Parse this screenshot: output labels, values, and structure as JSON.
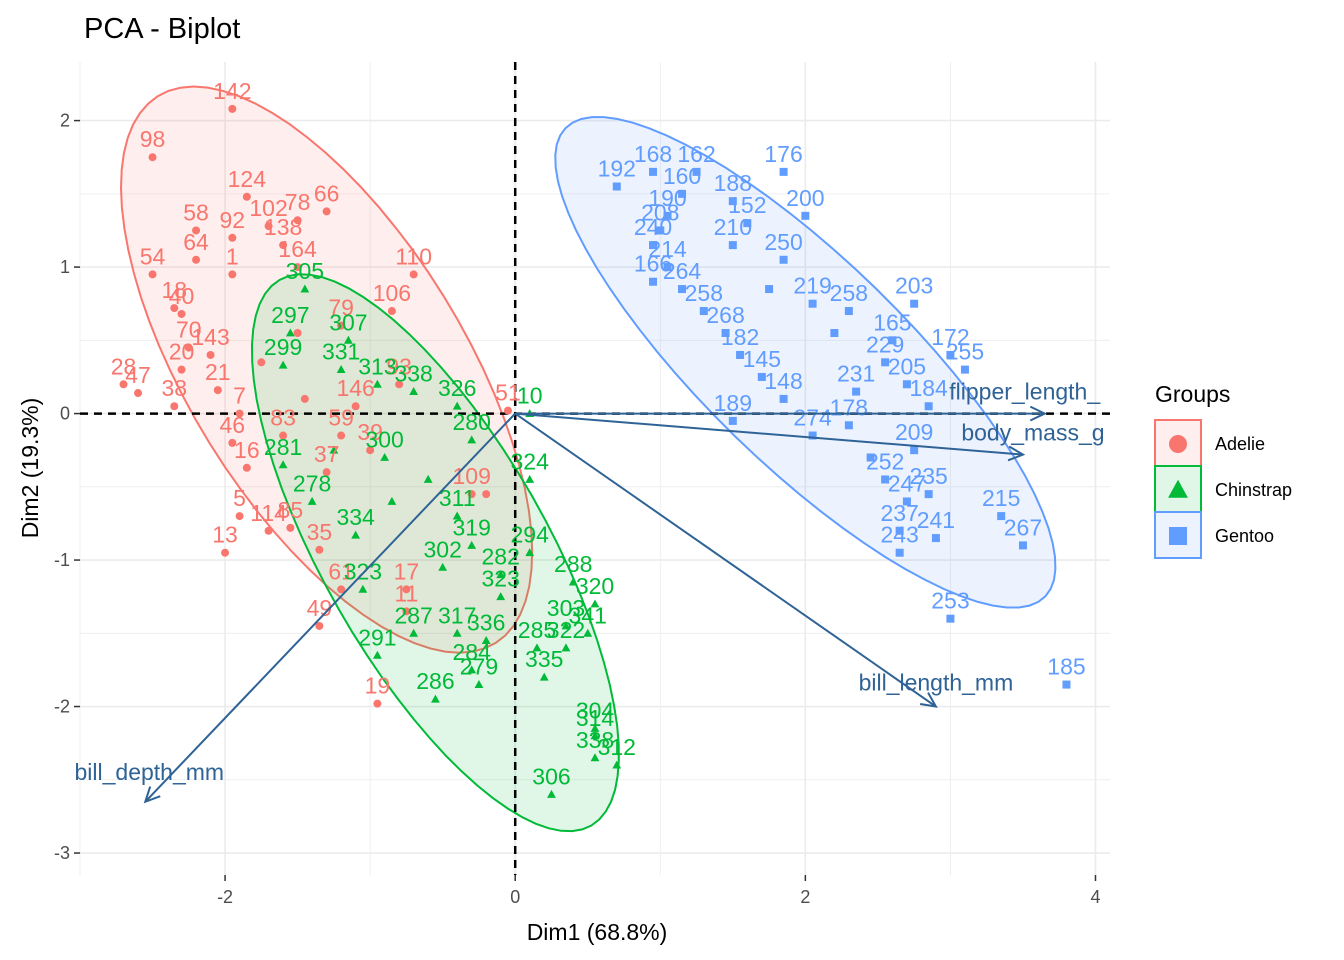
{
  "chart_data": {
    "type": "scatter",
    "title": "PCA - Biplot",
    "xlabel": "Dim1 (68.8%)",
    "ylabel": "Dim2 (19.3%)",
    "xlim": [
      -3.0,
      4.1
    ],
    "ylim": [
      -3.15,
      2.4
    ],
    "x_ticks": [
      -2,
      0,
      2,
      4
    ],
    "y_ticks": [
      -3,
      -2,
      -1,
      0,
      1,
      2
    ],
    "x_tick_labels": [
      "-2",
      "0",
      "2",
      "4"
    ],
    "y_tick_labels": [
      "-3",
      "-2",
      "-1",
      "0",
      "1",
      "2"
    ],
    "grid": true,
    "legend": {
      "title": "Groups",
      "placement": "right",
      "entries": [
        "Adelie",
        "Chinstrap",
        "Gentoo"
      ]
    },
    "series": [
      {
        "name": "Adelie",
        "color": "#f8766d",
        "marker": "circle",
        "ellipse": {
          "cx": -1.3,
          "cy": 0.3,
          "rx": 2.2,
          "ry": 0.95,
          "angle_deg": -58
        },
        "points": [
          {
            "x": -1.95,
            "y": 2.08,
            "label": "142"
          },
          {
            "x": -2.5,
            "y": 1.75,
            "label": "98"
          },
          {
            "x": -1.85,
            "y": 1.48,
            "label": "124"
          },
          {
            "x": -1.3,
            "y": 1.38,
            "label": "66"
          },
          {
            "x": -1.5,
            "y": 1.32,
            "label": "78"
          },
          {
            "x": -1.7,
            "y": 1.28,
            "label": "102"
          },
          {
            "x": -2.2,
            "y": 1.25,
            "label": "58"
          },
          {
            "x": -1.95,
            "y": 1.2,
            "label": "92"
          },
          {
            "x": -1.6,
            "y": 1.15,
            "label": "138"
          },
          {
            "x": -2.2,
            "y": 1.05,
            "label": "64"
          },
          {
            "x": -1.5,
            "y": 1.0,
            "label": "164"
          },
          {
            "x": -0.7,
            "y": 0.95,
            "label": "110"
          },
          {
            "x": -2.5,
            "y": 0.95,
            "label": "54"
          },
          {
            "x": -1.95,
            "y": 0.95,
            "label": "1"
          },
          {
            "x": -2.35,
            "y": 0.72,
            "label": "18"
          },
          {
            "x": -2.3,
            "y": 0.68,
            "label": "40"
          },
          {
            "x": -0.85,
            "y": 0.7,
            "label": "106"
          },
          {
            "x": -1.2,
            "y": 0.6,
            "label": "79"
          },
          {
            "x": -2.25,
            "y": 0.45,
            "label": "70"
          },
          {
            "x": -2.1,
            "y": 0.4,
            "label": "143"
          },
          {
            "x": -2.3,
            "y": 0.3,
            "label": "20"
          },
          {
            "x": -2.7,
            "y": 0.2,
            "label": "28"
          },
          {
            "x": -2.6,
            "y": 0.14,
            "label": "47"
          },
          {
            "x": -2.05,
            "y": 0.16,
            "label": "21"
          },
          {
            "x": -2.35,
            "y": 0.05,
            "label": "38"
          },
          {
            "x": -0.8,
            "y": 0.2,
            "label": "93"
          },
          {
            "x": -1.9,
            "y": 0.0,
            "label": "7"
          },
          {
            "x": -1.1,
            "y": 0.05,
            "label": "146"
          },
          {
            "x": -1.95,
            "y": -0.2,
            "label": "46"
          },
          {
            "x": -1.6,
            "y": -0.15,
            "label": "83"
          },
          {
            "x": -1.2,
            "y": -0.15,
            "label": "59"
          },
          {
            "x": -1.0,
            "y": -0.25,
            "label": "39"
          },
          {
            "x": -1.85,
            "y": -0.37,
            "label": "16"
          },
          {
            "x": -1.3,
            "y": -0.4,
            "label": "37"
          },
          {
            "x": -0.3,
            "y": -0.55,
            "label": "109"
          },
          {
            "x": -1.9,
            "y": -0.7,
            "label": "5"
          },
          {
            "x": -1.7,
            "y": -0.8,
            "label": "114"
          },
          {
            "x": -1.55,
            "y": -0.78,
            "label": "85"
          },
          {
            "x": -2.0,
            "y": -0.95,
            "label": "13"
          },
          {
            "x": -1.35,
            "y": -0.93,
            "label": "35"
          },
          {
            "x": -1.2,
            "y": -1.2,
            "label": "61"
          },
          {
            "x": -0.75,
            "y": -1.2,
            "label": "17"
          },
          {
            "x": -1.35,
            "y": -1.45,
            "label": "49"
          },
          {
            "x": -0.75,
            "y": -1.35,
            "label": "11"
          },
          {
            "x": -0.95,
            "y": -1.98,
            "label": "19"
          },
          {
            "x": -0.05,
            "y": 0.02,
            "label": "51"
          },
          {
            "x": -0.2,
            "y": -0.55,
            "label": ""
          },
          {
            "x": -1.5,
            "y": 0.55,
            "label": ""
          },
          {
            "x": -1.75,
            "y": 0.35,
            "label": ""
          },
          {
            "x": -1.45,
            "y": 0.1,
            "label": ""
          }
        ]
      },
      {
        "name": "Chinstrap",
        "color": "#00ba38",
        "marker": "triangle",
        "ellipse": {
          "cx": -0.55,
          "cy": -0.95,
          "rx": 2.15,
          "ry": 0.77,
          "angle_deg": -60
        },
        "points": [
          {
            "x": -1.45,
            "y": 0.85,
            "label": "305"
          },
          {
            "x": -1.55,
            "y": 0.55,
            "label": "297"
          },
          {
            "x": -1.15,
            "y": 0.5,
            "label": "307"
          },
          {
            "x": -1.6,
            "y": 0.33,
            "label": "299"
          },
          {
            "x": -1.2,
            "y": 0.3,
            "label": "331"
          },
          {
            "x": -0.95,
            "y": 0.2,
            "label": "313"
          },
          {
            "x": -0.7,
            "y": 0.15,
            "label": "338"
          },
          {
            "x": -0.4,
            "y": 0.05,
            "label": "326"
          },
          {
            "x": -0.3,
            "y": -0.18,
            "label": "280"
          },
          {
            "x": 0.1,
            "y": -0.45,
            "label": "324"
          },
          {
            "x": -0.9,
            "y": -0.3,
            "label": "300"
          },
          {
            "x": -1.4,
            "y": -0.6,
            "label": "278"
          },
          {
            "x": -0.4,
            "y": -0.7,
            "label": "311"
          },
          {
            "x": -1.6,
            "y": -0.35,
            "label": "281"
          },
          {
            "x": -1.1,
            "y": -0.83,
            "label": "334"
          },
          {
            "x": -0.3,
            "y": -0.9,
            "label": "319"
          },
          {
            "x": 0.1,
            "y": -0.95,
            "label": "294"
          },
          {
            "x": -0.5,
            "y": -1.05,
            "label": "302"
          },
          {
            "x": -0.1,
            "y": -1.1,
            "label": "282"
          },
          {
            "x": 0.4,
            "y": -1.15,
            "label": "288"
          },
          {
            "x": -0.1,
            "y": -1.25,
            "label": "323"
          },
          {
            "x": -1.05,
            "y": -1.2,
            "label": "323"
          },
          {
            "x": 0.55,
            "y": -1.3,
            "label": "320"
          },
          {
            "x": 0.35,
            "y": -1.45,
            "label": "303"
          },
          {
            "x": -0.7,
            "y": -1.5,
            "label": "287"
          },
          {
            "x": -0.4,
            "y": -1.5,
            "label": "317"
          },
          {
            "x": 0.5,
            "y": -1.5,
            "label": "341"
          },
          {
            "x": -0.2,
            "y": -1.55,
            "label": "336"
          },
          {
            "x": 0.15,
            "y": -1.6,
            "label": "285"
          },
          {
            "x": 0.35,
            "y": -1.6,
            "label": "322"
          },
          {
            "x": -0.95,
            "y": -1.65,
            "label": "291"
          },
          {
            "x": -0.3,
            "y": -1.75,
            "label": "284"
          },
          {
            "x": 0.2,
            "y": -1.8,
            "label": "335"
          },
          {
            "x": -0.25,
            "y": -1.85,
            "label": "279"
          },
          {
            "x": -0.55,
            "y": -1.95,
            "label": "286"
          },
          {
            "x": 0.55,
            "y": -2.15,
            "label": "304"
          },
          {
            "x": 0.55,
            "y": -2.2,
            "label": "314"
          },
          {
            "x": 0.55,
            "y": -2.35,
            "label": "338"
          },
          {
            "x": 0.7,
            "y": -2.4,
            "label": "312"
          },
          {
            "x": 0.25,
            "y": -2.6,
            "label": "306"
          },
          {
            "x": 0.1,
            "y": 0.0,
            "label": "10"
          },
          {
            "x": -0.6,
            "y": -0.45,
            "label": ""
          },
          {
            "x": -1.25,
            "y": -0.25,
            "label": ""
          },
          {
            "x": -0.85,
            "y": -0.6,
            "label": ""
          }
        ]
      },
      {
        "name": "Gentoo",
        "color": "#619cff",
        "marker": "square",
        "ellipse": {
          "cx": 2.0,
          "cy": 0.35,
          "rx": 2.3,
          "ry": 0.7,
          "angle_deg": -44
        },
        "points": [
          {
            "x": 0.95,
            "y": 1.65,
            "label": "168"
          },
          {
            "x": 1.25,
            "y": 1.65,
            "label": "162"
          },
          {
            "x": 1.85,
            "y": 1.65,
            "label": "176"
          },
          {
            "x": 0.7,
            "y": 1.55,
            "label": "192"
          },
          {
            "x": 1.15,
            "y": 1.5,
            "label": "160"
          },
          {
            "x": 1.5,
            "y": 1.45,
            "label": "188"
          },
          {
            "x": 1.05,
            "y": 1.35,
            "label": "190"
          },
          {
            "x": 2.0,
            "y": 1.35,
            "label": "200"
          },
          {
            "x": 1.0,
            "y": 1.25,
            "label": "208"
          },
          {
            "x": 1.6,
            "y": 1.3,
            "label": "152"
          },
          {
            "x": 0.95,
            "y": 1.15,
            "label": "240"
          },
          {
            "x": 1.5,
            "y": 1.15,
            "label": "210"
          },
          {
            "x": 1.05,
            "y": 1.0,
            "label": "214"
          },
          {
            "x": 1.85,
            "y": 1.05,
            "label": "250"
          },
          {
            "x": 0.95,
            "y": 0.9,
            "label": "166"
          },
          {
            "x": 1.15,
            "y": 0.85,
            "label": "264"
          },
          {
            "x": 1.3,
            "y": 0.7,
            "label": "258"
          },
          {
            "x": 2.05,
            "y": 0.75,
            "label": "219"
          },
          {
            "x": 2.3,
            "y": 0.7,
            "label": "258"
          },
          {
            "x": 2.75,
            "y": 0.75,
            "label": "203"
          },
          {
            "x": 1.45,
            "y": 0.55,
            "label": "268"
          },
          {
            "x": 2.6,
            "y": 0.5,
            "label": "165"
          },
          {
            "x": 3.0,
            "y": 0.4,
            "label": "172"
          },
          {
            "x": 1.55,
            "y": 0.4,
            "label": "182"
          },
          {
            "x": 2.55,
            "y": 0.35,
            "label": "229"
          },
          {
            "x": 3.1,
            "y": 0.3,
            "label": "255"
          },
          {
            "x": 1.7,
            "y": 0.25,
            "label": "145"
          },
          {
            "x": 2.7,
            "y": 0.2,
            "label": "205"
          },
          {
            "x": 2.35,
            "y": 0.15,
            "label": "231"
          },
          {
            "x": 1.85,
            "y": 0.1,
            "label": "148"
          },
          {
            "x": 2.85,
            "y": 0.05,
            "label": "184"
          },
          {
            "x": 1.5,
            "y": -0.05,
            "label": "189"
          },
          {
            "x": 2.3,
            "y": -0.08,
            "label": "178"
          },
          {
            "x": 2.05,
            "y": -0.15,
            "label": "274"
          },
          {
            "x": 2.75,
            "y": -0.25,
            "label": "209"
          },
          {
            "x": 2.55,
            "y": -0.45,
            "label": "252"
          },
          {
            "x": 2.85,
            "y": -0.55,
            "label": "235"
          },
          {
            "x": 2.7,
            "y": -0.6,
            "label": "247"
          },
          {
            "x": 3.35,
            "y": -0.7,
            "label": "215"
          },
          {
            "x": 3.5,
            "y": -0.9,
            "label": "267"
          },
          {
            "x": 2.65,
            "y": -0.8,
            "label": "237"
          },
          {
            "x": 2.9,
            "y": -0.85,
            "label": "241"
          },
          {
            "x": 2.65,
            "y": -0.95,
            "label": "243"
          },
          {
            "x": 3.0,
            "y": -1.4,
            "label": "253"
          },
          {
            "x": 3.8,
            "y": -1.85,
            "label": "185"
          },
          {
            "x": 2.2,
            "y": 0.55,
            "label": ""
          },
          {
            "x": 1.75,
            "y": 0.85,
            "label": ""
          },
          {
            "x": 2.45,
            "y": -0.3,
            "label": ""
          }
        ]
      }
    ],
    "variables": [
      {
        "name": "flipper_length_mm",
        "label": "flipper_length_",
        "x": 3.65,
        "y": 0.0
      },
      {
        "name": "body_mass_g",
        "label": "body_mass_g",
        "x": 3.5,
        "y": -0.28
      },
      {
        "name": "bill_length_mm",
        "label": "bill_length_mm",
        "x": 2.9,
        "y": -2.0
      },
      {
        "name": "bill_depth_mm",
        "label": "bill_depth_mm",
        "x": -2.55,
        "y": -2.65
      }
    ]
  }
}
